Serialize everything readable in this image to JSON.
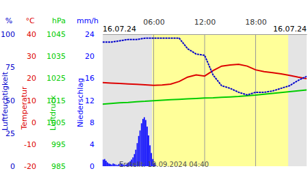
{
  "chart_data": [
    {
      "type": "line",
      "ylabel": "Luftfeuchtigkeit",
      "yunit": "%",
      "color": "#0000cc",
      "x": [
        0,
        1,
        2,
        3,
        4,
        5,
        6,
        7,
        8,
        9,
        10,
        11,
        12,
        13,
        14,
        15,
        16,
        17,
        18,
        19,
        20,
        21,
        22,
        23,
        24
      ],
      "values": [
        94,
        94,
        95,
        96,
        96,
        97,
        97,
        97,
        97,
        97,
        89,
        85,
        84,
        69,
        61,
        59,
        56,
        54,
        56,
        56,
        57,
        59,
        61,
        65,
        68
      ],
      "xlim": [
        0,
        24
      ],
      "xticks": [
        {
          "value": 6,
          "label": "06:00"
        },
        {
          "value": 12,
          "label": "12:00"
        },
        {
          "value": 18,
          "label": "18:00"
        }
      ],
      "grid": true,
      "daylight": [
        5.83,
        21.83
      ],
      "annotations": [
        "16.07.24",
        "16.07.24",
        "Erstellt: 19.09.2024 04:40"
      ],
      "ylim": [
        0,
        100
      ],
      "yticks": [
        0,
        25,
        50,
        75,
        100
      ]
    },
    {
      "type": "line",
      "ylabel": "Temperatur",
      "yunit": "°C",
      "color": "#dd0000",
      "x": [
        0,
        1,
        2,
        3,
        4,
        5,
        6,
        7,
        8,
        9,
        10,
        11,
        12,
        13,
        14,
        15,
        16,
        17,
        18,
        19,
        20,
        21,
        22,
        23,
        24
      ],
      "values": [
        18.0,
        17.8,
        17.6,
        17.4,
        17.2,
        17.0,
        16.8,
        16.9,
        17.3,
        18.5,
        20.5,
        21.5,
        21.0,
        23.5,
        25.5,
        26.0,
        26.3,
        25.5,
        23.8,
        23.0,
        22.5,
        22.0,
        21.3,
        20.5,
        19.8
      ],
      "xlim": [
        0,
        24
      ],
      "ylim": [
        -20,
        40
      ],
      "yticks": [
        -20,
        -10,
        0,
        10,
        20,
        30,
        40
      ]
    },
    {
      "type": "line",
      "ylabel": "Luftdruck",
      "yunit": "hPa",
      "color": "#00cc00",
      "x": [
        0,
        1,
        2,
        3,
        4,
        5,
        6,
        7,
        8,
        9,
        10,
        11,
        12,
        13,
        14,
        15,
        16,
        17,
        18,
        19,
        20,
        21,
        22,
        23,
        24
      ],
      "values": [
        1013.2,
        1013.5,
        1013.8,
        1014.0,
        1014.3,
        1014.5,
        1014.8,
        1015.0,
        1015.2,
        1015.4,
        1015.6,
        1015.8,
        1016.0,
        1016.1,
        1016.3,
        1016.5,
        1016.7,
        1017.0,
        1017.3,
        1017.7,
        1018.1,
        1018.5,
        1018.9,
        1019.3,
        1019.7
      ],
      "xlim": [
        0,
        24
      ],
      "ylim": [
        985,
        1045
      ],
      "yticks": [
        985,
        995,
        1005,
        1015,
        1025,
        1035,
        1045
      ]
    },
    {
      "type": "bar",
      "ylabel": "Niederschlag",
      "yunit": "mm/h",
      "color": "#0000ff",
      "x": [
        0,
        0.17,
        0.33,
        0.5,
        0.67,
        0.83,
        1,
        1.17,
        1.33,
        1.5,
        1.67,
        1.83,
        2,
        2.17,
        2.33,
        2.5,
        2.67,
        2.83,
        3,
        3.17,
        3.33,
        3.5,
        3.67,
        3.83,
        4,
        4.17,
        4.33,
        4.5,
        4.67,
        4.83,
        5,
        5.17,
        5.33,
        5.5,
        5.67,
        5.83,
        6,
        6.17
      ],
      "values": [
        1.2,
        1.3,
        1.0,
        0.7,
        0.5,
        0.4,
        0.3,
        0.5,
        0.4,
        0.3,
        0.2,
        0.4,
        0.6,
        0.4,
        0.3,
        0.2,
        0.3,
        0.5,
        0.7,
        0.9,
        1.2,
        1.6,
        2.2,
        3.0,
        4.2,
        5.5,
        6.5,
        7.8,
        8.6,
        8.9,
        8.4,
        7.2,
        5.6,
        3.8,
        2.4,
        1.3,
        0.6,
        0.2
      ],
      "xlim": [
        0,
        24
      ],
      "ylim": [
        0,
        24
      ],
      "yticks": [
        0,
        4,
        8,
        12,
        16,
        20,
        24
      ]
    }
  ]
}
